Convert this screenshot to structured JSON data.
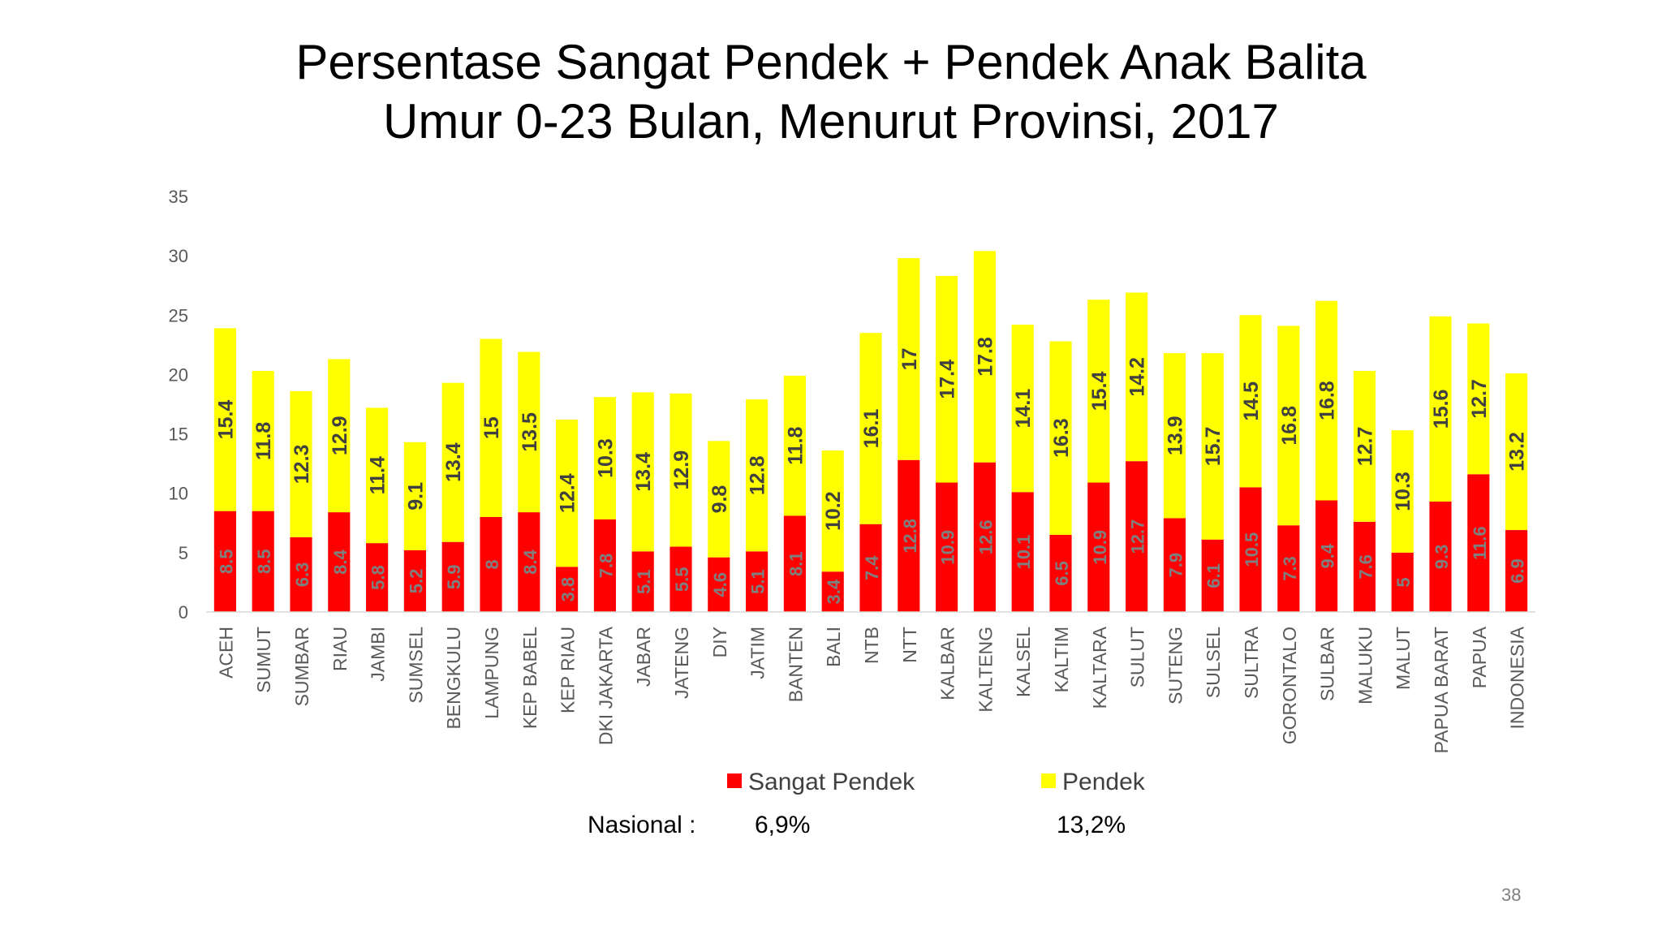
{
  "slide": {
    "title_line1": "Persentase Sangat Pendek + Pendek  Anak Balita",
    "title_line2": "Umur 0-23 Bulan, Menurut Provinsi, 2017",
    "nasional_label": "Nasional :",
    "nasional_sangat_pendek": "6,9%",
    "nasional_pendek": "13,2%",
    "page_number": "38"
  },
  "colors": {
    "sangat_pendek": "#ff0000",
    "pendek": "#ffff00",
    "sangat_pendek_label": "#7f7f7f",
    "pendek_label": "#404040",
    "axis_text": "#595959"
  },
  "chart_data": {
    "type": "bar",
    "stacked": true,
    "title": "Persentase Sangat Pendek + Pendek  Anak Balita Umur 0-23 Bulan, Menurut Provinsi, 2017",
    "xlabel": "",
    "ylabel": "",
    "ylim": [
      0,
      35
    ],
    "yticks": [
      0,
      5,
      10,
      15,
      20,
      25,
      30,
      35
    ],
    "grid": false,
    "legend_position": "bottom",
    "categories": [
      "ACEH",
      "SUMUT",
      "SUMBAR",
      "RIAU",
      "JAMBI",
      "SUMSEL",
      "BENGKULU",
      "LAMPUNG",
      "KEP BABEL",
      "KEP RIAU",
      "DKI JAKARTA",
      "JABAR",
      "JATENG",
      "DIY",
      "JATIM",
      "BANTEN",
      "BALI",
      "NTB",
      "NTT",
      "KALBAR",
      "KALTENG",
      "KALSEL",
      "KALTIM",
      "KALTARA",
      "SULUT",
      "SUTENG",
      "SULSEL",
      "SULTRA",
      "GORONTALO",
      "SULBAR",
      "MALUKU",
      "MALUT",
      "PAPUA BARAT",
      "PAPUA",
      "INDONESIA"
    ],
    "series": [
      {
        "name": "Sangat Pendek",
        "values": [
          8.5,
          8.5,
          6.3,
          8.4,
          5.8,
          5.2,
          5.9,
          8,
          8.4,
          3.8,
          7.8,
          5.1,
          5.5,
          4.6,
          5.1,
          8.1,
          3.4,
          7.4,
          12.8,
          10.9,
          12.6,
          10.1,
          6.5,
          10.9,
          12.7,
          7.9,
          6.1,
          10.5,
          7.3,
          9.4,
          7.6,
          5,
          9.3,
          11.6,
          6.9
        ]
      },
      {
        "name": "Pendek",
        "values": [
          15.4,
          11.8,
          12.3,
          12.9,
          11.4,
          9.1,
          13.4,
          15,
          13.5,
          12.4,
          10.3,
          13.4,
          12.9,
          9.8,
          12.8,
          11.8,
          10.2,
          16.1,
          17,
          17.4,
          17.8,
          14.1,
          16.3,
          15.4,
          14.2,
          13.9,
          15.7,
          14.5,
          16.8,
          16.8,
          12.7,
          10.3,
          15.6,
          12.7,
          13.2
        ]
      }
    ]
  }
}
